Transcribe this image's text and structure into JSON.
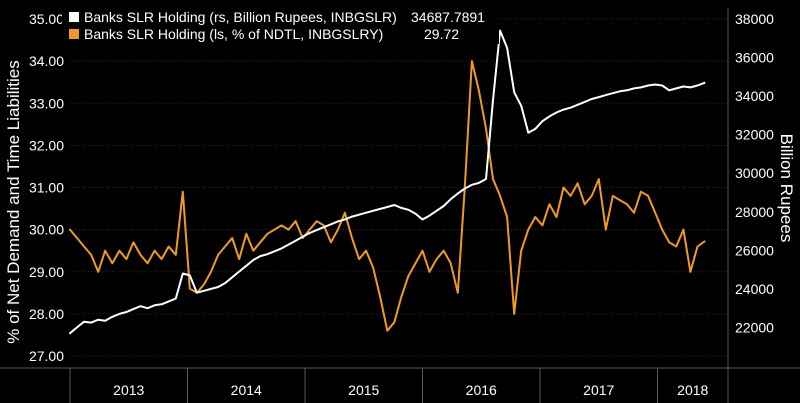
{
  "chart_data": {
    "type": "line",
    "left_axis": {
      "label": "% of Net Demand and Time Liabilities",
      "range": [
        27.0,
        35.0
      ],
      "ticks": [
        "27.00",
        "28.00",
        "29.00",
        "30.00",
        "31.00",
        "32.00",
        "33.00",
        "34.00",
        "35.00"
      ]
    },
    "right_axis": {
      "label": "Billion Rupees",
      "range": [
        20000,
        38000
      ],
      "ticks": [
        "22000",
        "24000",
        "26000",
        "28000",
        "30000",
        "32000",
        "34000",
        "36000",
        "38000"
      ]
    },
    "x_axis": {
      "years": [
        "2013",
        "2014",
        "2015",
        "2016",
        "2017",
        "2018"
      ],
      "range": [
        2013.0,
        2018.6
      ]
    },
    "legend": [
      {
        "name": "Banks SLR Holding (rs, Billion Rupees, INBGSLR)",
        "value": "34687.7891",
        "color": "#ffffff"
      },
      {
        "name": "Banks SLR Holding (ls, % of NDTL, INBGSLRY)",
        "value": "29.72",
        "color": "#f29a1e"
      }
    ],
    "series": [
      {
        "name": "Banks SLR Holding (rs, Billion Rupees, INBGSLR)",
        "axis": "right",
        "color": "#ffffff",
        "x": [
          2013.0,
          2013.06,
          2013.12,
          2013.18,
          2013.24,
          2013.3,
          2013.36,
          2013.42,
          2013.48,
          2013.54,
          2013.6,
          2013.66,
          2013.72,
          2013.78,
          2013.84,
          2013.9,
          2013.96,
          2014.02,
          2014.08,
          2014.14,
          2014.2,
          2014.26,
          2014.32,
          2014.38,
          2014.44,
          2014.5,
          2014.56,
          2014.62,
          2014.68,
          2014.74,
          2014.8,
          2014.86,
          2014.92,
          2014.98,
          2015.04,
          2015.1,
          2015.16,
          2015.22,
          2015.28,
          2015.34,
          2015.4,
          2015.46,
          2015.52,
          2015.58,
          2015.64,
          2015.7,
          2015.76,
          2015.82,
          2015.88,
          2015.94,
          2016.0,
          2016.06,
          2016.12,
          2016.18,
          2016.24,
          2016.3,
          2016.36,
          2016.42,
          2016.48,
          2016.54,
          2016.6,
          2016.66,
          2016.72,
          2016.78,
          2016.84,
          2016.9,
          2016.96,
          2017.02,
          2017.08,
          2017.14,
          2017.2,
          2017.26,
          2017.32,
          2017.38,
          2017.44,
          2017.5,
          2017.56,
          2017.62,
          2017.68,
          2017.74,
          2017.8,
          2017.86,
          2017.92,
          2017.98,
          2018.04,
          2018.1,
          2018.16,
          2018.22,
          2018.28,
          2018.34,
          2018.4
        ],
        "values": [
          21700,
          22000,
          22300,
          22250,
          22400,
          22350,
          22550,
          22700,
          22800,
          22950,
          23100,
          23000,
          23150,
          23200,
          23350,
          23500,
          24800,
          24700,
          23800,
          23900,
          24000,
          24100,
          24300,
          24600,
          24900,
          25200,
          25500,
          25700,
          25800,
          25950,
          26100,
          26300,
          26500,
          26700,
          26900,
          27050,
          27200,
          27350,
          27500,
          27600,
          27750,
          27850,
          27950,
          28050,
          28150,
          28250,
          28350,
          28200,
          28100,
          27900,
          27600,
          27800,
          28050,
          28300,
          28650,
          28950,
          29200,
          29400,
          29500,
          29700,
          33800,
          37400,
          36500,
          34200,
          33500,
          32100,
          32300,
          32700,
          32950,
          33150,
          33300,
          33400,
          33550,
          33700,
          33850,
          33950,
          34050,
          34150,
          34250,
          34300,
          34400,
          34450,
          34550,
          34600,
          34550,
          34300,
          34400,
          34500,
          34450,
          34550,
          34688
        ]
      },
      {
        "name": "Banks SLR Holding (ls, % of NDTL, INBGSLRY)",
        "axis": "left",
        "color": "#f29a1e",
        "x": [
          2013.0,
          2013.06,
          2013.12,
          2013.18,
          2013.24,
          2013.3,
          2013.36,
          2013.42,
          2013.48,
          2013.54,
          2013.6,
          2013.66,
          2013.72,
          2013.78,
          2013.84,
          2013.9,
          2013.96,
          2014.02,
          2014.08,
          2014.14,
          2014.2,
          2014.26,
          2014.32,
          2014.38,
          2014.44,
          2014.5,
          2014.56,
          2014.62,
          2014.68,
          2014.74,
          2014.8,
          2014.86,
          2014.92,
          2014.98,
          2015.04,
          2015.1,
          2015.16,
          2015.22,
          2015.28,
          2015.34,
          2015.4,
          2015.46,
          2015.52,
          2015.58,
          2015.64,
          2015.7,
          2015.76,
          2015.82,
          2015.88,
          2015.94,
          2016.0,
          2016.06,
          2016.12,
          2016.18,
          2016.24,
          2016.3,
          2016.36,
          2016.42,
          2016.48,
          2016.54,
          2016.6,
          2016.66,
          2016.72,
          2016.78,
          2016.84,
          2016.9,
          2016.96,
          2017.02,
          2017.08,
          2017.14,
          2017.2,
          2017.26,
          2017.32,
          2017.38,
          2017.44,
          2017.5,
          2017.56,
          2017.62,
          2017.68,
          2017.74,
          2017.8,
          2017.86,
          2017.92,
          2017.98,
          2018.04,
          2018.1,
          2018.16,
          2018.22,
          2018.28,
          2018.34,
          2018.4
        ],
        "values": [
          30.0,
          29.8,
          29.6,
          29.4,
          29.0,
          29.5,
          29.2,
          29.5,
          29.3,
          29.7,
          29.4,
          29.2,
          29.5,
          29.3,
          29.6,
          29.4,
          30.9,
          28.6,
          28.5,
          28.7,
          29.0,
          29.4,
          29.6,
          29.8,
          29.3,
          29.9,
          29.5,
          29.7,
          29.9,
          30.0,
          30.1,
          30.0,
          30.2,
          29.8,
          30.0,
          30.2,
          30.1,
          29.7,
          30.0,
          30.4,
          29.8,
          29.3,
          29.5,
          29.1,
          28.4,
          27.6,
          27.8,
          28.4,
          28.9,
          29.2,
          29.5,
          29.0,
          29.3,
          29.5,
          29.2,
          28.5,
          31.0,
          34.0,
          33.3,
          32.4,
          31.2,
          30.8,
          30.3,
          28.0,
          29.5,
          30.0,
          30.3,
          30.1,
          30.6,
          30.3,
          31.0,
          30.8,
          31.1,
          30.6,
          30.8,
          31.2,
          30.0,
          30.8,
          30.7,
          30.6,
          30.4,
          30.9,
          30.8,
          30.4,
          30.0,
          29.7,
          29.6,
          30.0,
          29.0,
          29.6,
          29.72
        ]
      }
    ]
  }
}
